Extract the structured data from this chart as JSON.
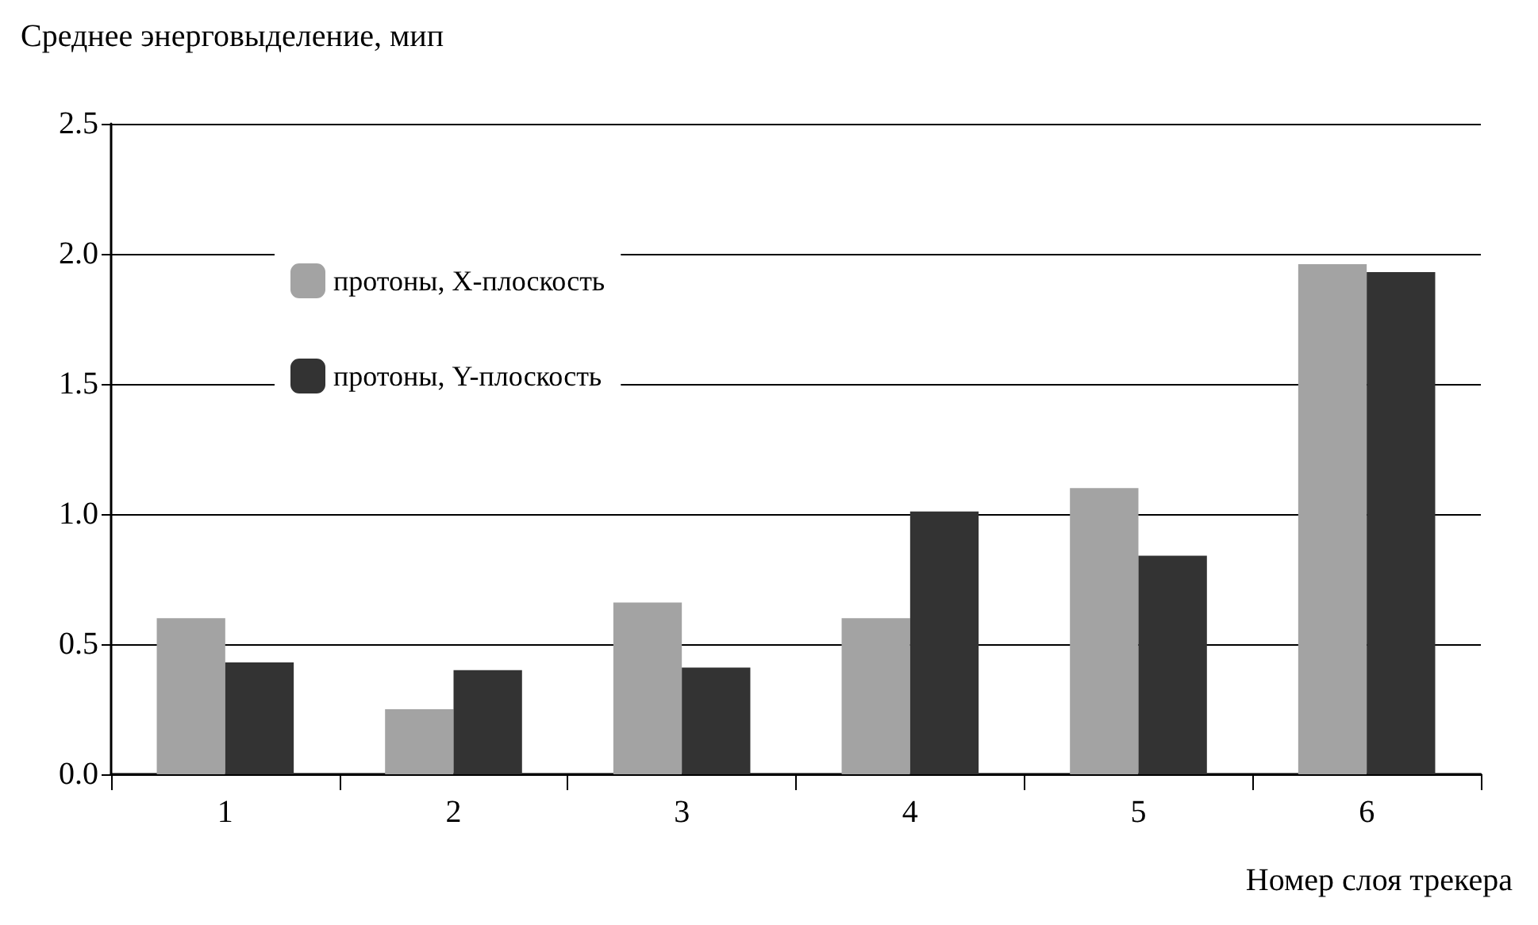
{
  "chart_data": {
    "type": "bar",
    "ylabel": "Среднее энерговыделение, мип",
    "xlabel": "Номер слоя трекера",
    "categories": [
      "1",
      "2",
      "3",
      "4",
      "5",
      "6"
    ],
    "series": [
      {
        "name": "протоны, X-плоскость",
        "color": "#a3a3a3",
        "values": [
          0.6,
          0.25,
          0.66,
          0.6,
          1.1,
          1.96
        ]
      },
      {
        "name": "протоны, Y-плоскость",
        "color": "#333333",
        "values": [
          0.43,
          0.4,
          0.41,
          1.01,
          0.84,
          1.93
        ]
      }
    ],
    "ylim": [
      0,
      2.5
    ],
    "yticks": [
      {
        "value": 0,
        "label": "0.0"
      },
      0.5,
      {
        "value": 1,
        "label": "1.0"
      },
      1.5,
      {
        "value": 2,
        "label": "2.0"
      },
      2.5
    ],
    "grid": "y",
    "legend": "top left"
  }
}
